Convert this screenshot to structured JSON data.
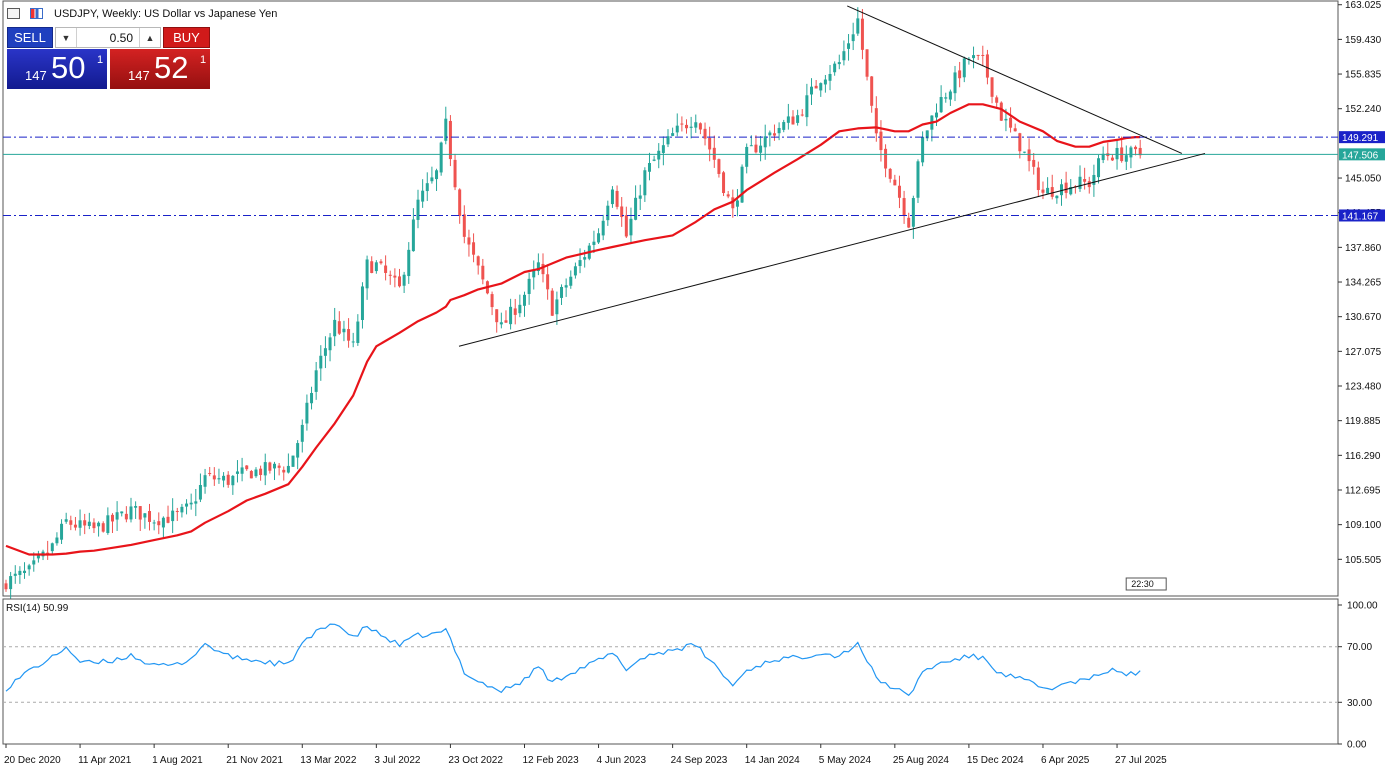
{
  "header": {
    "title": "USDJPY, Weekly:  US Dollar vs Japanese Yen",
    "icons": [
      "chart-list-icon",
      "chart-bars-icon"
    ]
  },
  "trade_panel": {
    "sell_label": "SELL",
    "buy_label": "BUY",
    "volume": "0.50",
    "sell_price": {
      "prefix": "147",
      "big": "50",
      "sup": "1"
    },
    "buy_price": {
      "prefix": "147",
      "big": "52",
      "sup": "1"
    }
  },
  "colors": {
    "bull": "#26a69a",
    "bear": "#ef5350",
    "ma": "#e8141a",
    "rsi": "#2196f3",
    "level": "#1a22c8",
    "price_line": "#26a69a"
  },
  "chart_data": [
    {
      "type": "candlestick",
      "title": "USDJPY, Weekly:  US Dollar vs Japanese Yen",
      "timeframe": "Weekly",
      "y_ticks": [
        163.025,
        159.43,
        155.835,
        152.24,
        145.05,
        141.455,
        137.86,
        134.265,
        130.67,
        127.075,
        123.48,
        119.885,
        116.29,
        112.695,
        109.1,
        105.505
      ],
      "y_tick_labels": [
        "163.025",
        "159.430",
        "155.835",
        "152.240",
        "145.050",
        "141.455",
        "137.860",
        "134.265",
        "130.670",
        "127.075",
        "123.480",
        "119.885",
        "116.290",
        "112.695",
        "109.100",
        "105.505"
      ],
      "ylim": [
        101.7,
        163.1
      ],
      "x_ticks": [
        "20 Dec 2020",
        "11 Apr 2021",
        "1 Aug 2021",
        "21 Nov 2021",
        "13 Mar 2022",
        "3 Jul 2022",
        "23 Oct 2022",
        "12 Feb 2023",
        "4 Jun 2023",
        "24 Sep 2023",
        "14 Jan 2024",
        "5 May 2024",
        "25 Aug 2024",
        "15 Dec 2024",
        "6 Apr 2025",
        "27 Jul 2025"
      ],
      "close_path": [
        [
          "20 Dec 2020",
          103.2
        ],
        [
          "24 Jan 2021",
          104.2
        ],
        [
          "28 Feb 2021",
          106.8
        ],
        [
          "21 Mar 2021",
          109.4
        ],
        [
          "11 Apr 2021",
          108.9
        ],
        [
          "2 May 2021",
          108.6
        ],
        [
          "30 May 2021",
          109.5
        ],
        [
          "27 Jun 2021",
          110.6
        ],
        [
          "1 Aug 2021",
          109.7
        ],
        [
          "5 Sep 2021",
          110.0
        ],
        [
          "26 Sep 2021",
          111.0
        ],
        [
          "17 Oct 2021",
          114.0
        ],
        [
          "21 Nov 2021",
          113.7
        ],
        [
          "19 Dec 2021",
          114.5
        ],
        [
          "16 Jan 2022",
          114.8
        ],
        [
          "20 Feb 2022",
          115.1
        ],
        [
          "13 Mar 2022",
          119.0
        ],
        [
          "3 Apr 2022",
          125.0
        ],
        [
          "1 May 2022",
          130.0
        ],
        [
          "29 May 2022",
          127.5
        ],
        [
          "19 Jun 2022",
          136.0
        ],
        [
          "3 Jul 2022",
          136.0
        ],
        [
          "7 Aug 2022",
          133.5
        ],
        [
          "4 Sep 2022",
          142.5
        ],
        [
          "2 Oct 2022",
          145.5
        ],
        [
          "16 Oct 2022",
          150.5
        ],
        [
          "23 Oct 2022",
          147.5
        ],
        [
          "13 Nov 2022",
          139.0
        ],
        [
          "4 Dec 2022",
          135.5
        ],
        [
          "8 Jan 2023",
          129.5
        ],
        [
          "12 Feb 2023",
          133.0
        ],
        [
          "5 Mar 2023",
          136.0
        ],
        [
          "26 Mar 2023",
          131.5
        ],
        [
          "16 Apr 2023",
          134.0
        ],
        [
          "4 Jun 2023",
          139.5
        ],
        [
          "25 Jun 2023",
          144.5
        ],
        [
          "16 Jul 2023",
          139.0
        ],
        [
          "13 Aug 2023",
          145.5
        ],
        [
          "24 Sep 2023",
          149.5
        ],
        [
          "29 Oct 2023",
          151.5
        ],
        [
          "26 Nov 2023",
          147.0
        ],
        [
          "24 Dec 2023",
          141.5
        ],
        [
          "14 Jan 2024",
          147.5
        ],
        [
          "25 Feb 2024",
          150.0
        ],
        [
          "31 Mar 2024",
          151.5
        ],
        [
          "5 May 2024",
          155.5
        ],
        [
          "2 Jun 2024",
          157.0
        ],
        [
          "30 Jun 2024",
          161.5
        ],
        [
          "28 Jul 2024",
          149.0
        ],
        [
          "25 Aug 2024",
          144.5
        ],
        [
          "15 Sep 2024",
          140.5
        ],
        [
          "6 Oct 2024",
          149.0
        ],
        [
          "27 Oct 2024",
          152.5
        ],
        [
          "17 Nov 2024",
          154.5
        ],
        [
          "15 Dec 2024",
          157.5
        ],
        [
          "5 Jan 2025",
          157.0
        ],
        [
          "2 Feb 2025",
          151.5
        ],
        [
          "2 Mar 2025",
          148.5
        ],
        [
          "6 Apr 2025",
          143.5
        ],
        [
          "27 Apr 2025",
          144.0
        ],
        [
          "25 May 2025",
          144.5
        ],
        [
          "15 Jun 2025",
          144.5
        ],
        [
          "6 Jul 2025",
          147.5
        ],
        [
          "27 Jul 2025",
          147.5
        ],
        [
          "10 Aug 2025",
          147.5
        ],
        [
          "24 Aug 2025",
          147.5
        ],
        [
          "31 Aug 2025",
          147.5
        ]
      ],
      "ma_path": [
        [
          "20 Dec 2020",
          106.9
        ],
        [
          "24 Jan 2021",
          106.0
        ],
        [
          "28 Feb 2021",
          106.0
        ],
        [
          "21 Mar 2021",
          106.1
        ],
        [
          "11 Apr 2021",
          106.3
        ],
        [
          "2 May 2021",
          106.4
        ],
        [
          "30 May 2021",
          106.7
        ],
        [
          "27 Jun 2021",
          107.0
        ],
        [
          "1 Aug 2021",
          107.5
        ],
        [
          "5 Sep 2021",
          108.0
        ],
        [
          "26 Sep 2021",
          108.4
        ],
        [
          "17 Oct 2021",
          109.3
        ],
        [
          "21 Nov 2021",
          110.5
        ],
        [
          "19 Dec 2021",
          111.6
        ],
        [
          "16 Jan 2022",
          112.3
        ],
        [
          "20 Feb 2022",
          113.3
        ],
        [
          "13 Mar 2022",
          115.1
        ],
        [
          "3 Apr 2022",
          117.1
        ],
        [
          "1 May 2022",
          119.6
        ],
        [
          "29 May 2022",
          122.5
        ],
        [
          "19 Jun 2022",
          126.0
        ],
        [
          "3 Jul 2022",
          127.6
        ],
        [
          "7 Aug 2022",
          129.0
        ],
        [
          "4 Sep 2022",
          130.2
        ],
        [
          "2 Oct 2022",
          131.1
        ],
        [
          "16 Oct 2022",
          131.7
        ],
        [
          "23 Oct 2022",
          132.4
        ],
        [
          "13 Nov 2022",
          132.9
        ],
        [
          "4 Dec 2022",
          133.5
        ],
        [
          "8 Jan 2023",
          134.1
        ],
        [
          "12 Feb 2023",
          135.3
        ],
        [
          "5 Mar 2023",
          135.6
        ],
        [
          "26 Mar 2023",
          136.2
        ],
        [
          "16 Apr 2023",
          136.8
        ],
        [
          "4 Jun 2023",
          137.6
        ],
        [
          "25 Jun 2023",
          137.9
        ],
        [
          "16 Jul 2023",
          138.2
        ],
        [
          "13 Aug 2023",
          138.6
        ],
        [
          "24 Sep 2023",
          139.1
        ],
        [
          "29 Oct 2023",
          140.5
        ],
        [
          "26 Nov 2023",
          141.8
        ],
        [
          "24 Dec 2023",
          142.6
        ],
        [
          "14 Jan 2024",
          143.8
        ],
        [
          "25 Feb 2024",
          145.6
        ],
        [
          "31 Mar 2024",
          147.0
        ],
        [
          "5 May 2024",
          148.5
        ],
        [
          "2 Jun 2024",
          149.9
        ],
        [
          "30 Jun 2024",
          150.2
        ],
        [
          "28 Jul 2024",
          150.3
        ],
        [
          "25 Aug 2024",
          149.9
        ],
        [
          "15 Sep 2024",
          149.9
        ],
        [
          "6 Oct 2024",
          150.6
        ],
        [
          "27 Oct 2024",
          150.9
        ],
        [
          "17 Nov 2024",
          151.8
        ],
        [
          "15 Dec 2024",
          152.7
        ],
        [
          "5 Jan 2025",
          152.7
        ],
        [
          "2 Feb 2025",
          152.2
        ],
        [
          "2 Mar 2025",
          150.9
        ],
        [
          "6 Apr 2025",
          149.9
        ],
        [
          "27 Apr 2025",
          148.9
        ],
        [
          "25 May 2025",
          148.3
        ],
        [
          "15 Jun 2025",
          148.3
        ],
        [
          "6 Jul 2025",
          148.8
        ],
        [
          "27 Jul 2025",
          149.0
        ],
        [
          "10 Aug 2025",
          149.2
        ],
        [
          "24 Aug 2025",
          149.3
        ],
        [
          "31 Aug 2025",
          149.3
        ]
      ],
      "levels": [
        {
          "value": 149.291,
          "label": "149.291",
          "style": "dash-dot"
        },
        {
          "value": 141.167,
          "label": "141.167",
          "style": "dash-dot"
        }
      ],
      "current_price": {
        "value": 147.506,
        "label": "147.506"
      },
      "trendlines": [
        {
          "from": [
            "5 Nov 2022",
            127.6
          ],
          "to": [
            "7 Dec 2025",
            147.6
          ]
        },
        {
          "from": [
            "14 Jun 2024",
            162.9
          ],
          "to": [
            "2 Nov 2025",
            147.6
          ]
        }
      ],
      "time_marker": "22:30"
    },
    {
      "type": "line",
      "title": "RSI(14) 50.99",
      "ylim": [
        0,
        100
      ],
      "y_ticks": [
        100,
        70,
        30,
        0
      ],
      "y_tick_labels": [
        "100.00",
        "70.00",
        "30.00",
        "0.00"
      ],
      "guides": [
        70,
        30
      ],
      "points": [
        [
          "20 Dec 2020",
          40
        ],
        [
          "24 Jan 2021",
          53
        ],
        [
          "28 Feb 2021",
          62
        ],
        [
          "21 Mar 2021",
          70
        ],
        [
          "11 Apr 2021",
          59
        ],
        [
          "2 May 2021",
          58
        ],
        [
          "30 May 2021",
          60
        ],
        [
          "27 Jun 2021",
          64
        ],
        [
          "1 Aug 2021",
          56
        ],
        [
          "5 Sep 2021",
          57
        ],
        [
          "26 Sep 2021",
          62
        ],
        [
          "17 Oct 2021",
          72
        ],
        [
          "21 Nov 2021",
          63
        ],
        [
          "19 Dec 2021",
          61
        ],
        [
          "16 Jan 2022",
          59
        ],
        [
          "20 Feb 2022",
          57
        ],
        [
          "13 Mar 2022",
          72
        ],
        [
          "3 Apr 2022",
          80
        ],
        [
          "1 May 2022",
          88
        ],
        [
          "29 May 2022",
          76
        ],
        [
          "19 Jun 2022",
          85
        ],
        [
          "3 Jul 2022",
          80
        ],
        [
          "7 Aug 2022",
          71
        ],
        [
          "4 Sep 2022",
          78
        ],
        [
          "2 Oct 2022",
          79
        ],
        [
          "16 Oct 2022",
          82
        ],
        [
          "23 Oct 2022",
          75
        ],
        [
          "13 Nov 2022",
          52
        ],
        [
          "4 Dec 2022",
          45
        ],
        [
          "8 Jan 2023",
          38
        ],
        [
          "12 Feb 2023",
          46
        ],
        [
          "5 Mar 2023",
          56
        ],
        [
          "26 Mar 2023",
          44
        ],
        [
          "16 Apr 2023",
          50
        ],
        [
          "4 Jun 2023",
          60
        ],
        [
          "25 Jun 2023",
          65
        ],
        [
          "16 Jul 2023",
          54
        ],
        [
          "13 Aug 2023",
          63
        ],
        [
          "24 Sep 2023",
          68
        ],
        [
          "29 Oct 2023",
          71
        ],
        [
          "26 Nov 2023",
          57
        ],
        [
          "24 Dec 2023",
          42
        ],
        [
          "14 Jan 2024",
          53
        ],
        [
          "25 Feb 2024",
          61
        ],
        [
          "31 Mar 2024",
          62
        ],
        [
          "5 May 2024",
          66
        ],
        [
          "2 Jun 2024",
          63
        ],
        [
          "30 Jun 2024",
          73
        ],
        [
          "28 Jul 2024",
          47
        ],
        [
          "25 Aug 2024",
          40
        ],
        [
          "15 Sep 2024",
          34
        ],
        [
          "6 Oct 2024",
          52
        ],
        [
          "27 Oct 2024",
          57
        ],
        [
          "17 Nov 2024",
          60
        ],
        [
          "15 Dec 2024",
          63
        ],
        [
          "5 Jan 2025",
          62
        ],
        [
          "2 Feb 2025",
          50
        ],
        [
          "2 Mar 2025",
          47
        ],
        [
          "6 Apr 2025",
          40
        ],
        [
          "27 Apr 2025",
          41
        ],
        [
          "25 May 2025",
          45
        ],
        [
          "15 Jun 2025",
          46
        ],
        [
          "6 Jul 2025",
          52
        ],
        [
          "27 Jul 2025",
          53
        ],
        [
          "10 Aug 2025",
          50
        ],
        [
          "24 Aug 2025",
          51
        ],
        [
          "31 Aug 2025",
          50.99
        ]
      ]
    }
  ]
}
